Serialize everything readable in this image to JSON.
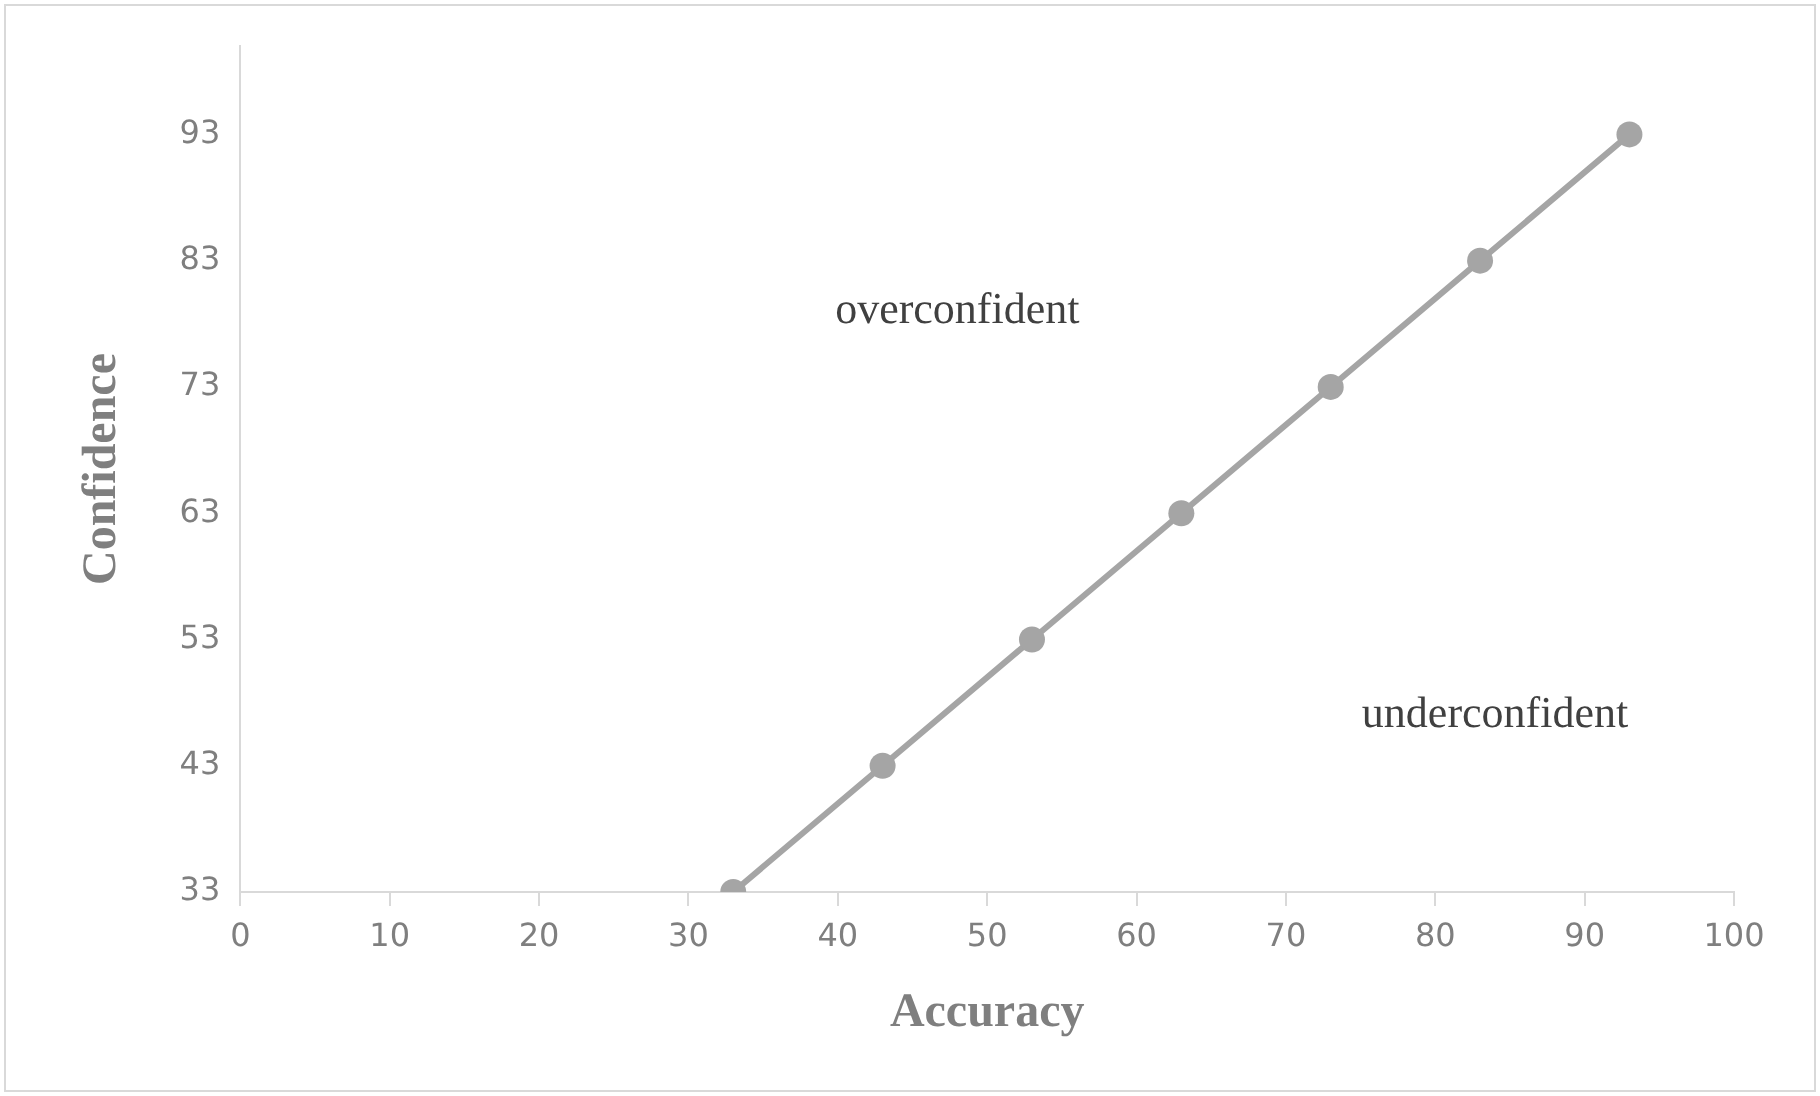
{
  "chart_data": {
    "type": "line",
    "xlabel": "Accuracy",
    "ylabel": "Confidence",
    "x": [
      33,
      43,
      53,
      63,
      73,
      83,
      93
    ],
    "series": [
      {
        "color": "#a5a5a5",
        "values": [
          33,
          43,
          53,
          63,
          73,
          83,
          93
        ]
      }
    ],
    "xlim": [
      0,
      100
    ],
    "xticks": [
      0,
      10,
      20,
      30,
      40,
      50,
      60,
      70,
      80,
      90,
      100
    ],
    "ylim": [
      33,
      100
    ],
    "yticks": [
      33,
      43,
      53,
      63,
      73,
      83,
      93
    ],
    "grid": false,
    "legend": false,
    "marker": "circle",
    "line_style": "solid",
    "annotations": [
      "overconfident",
      "underconfident"
    ]
  }
}
